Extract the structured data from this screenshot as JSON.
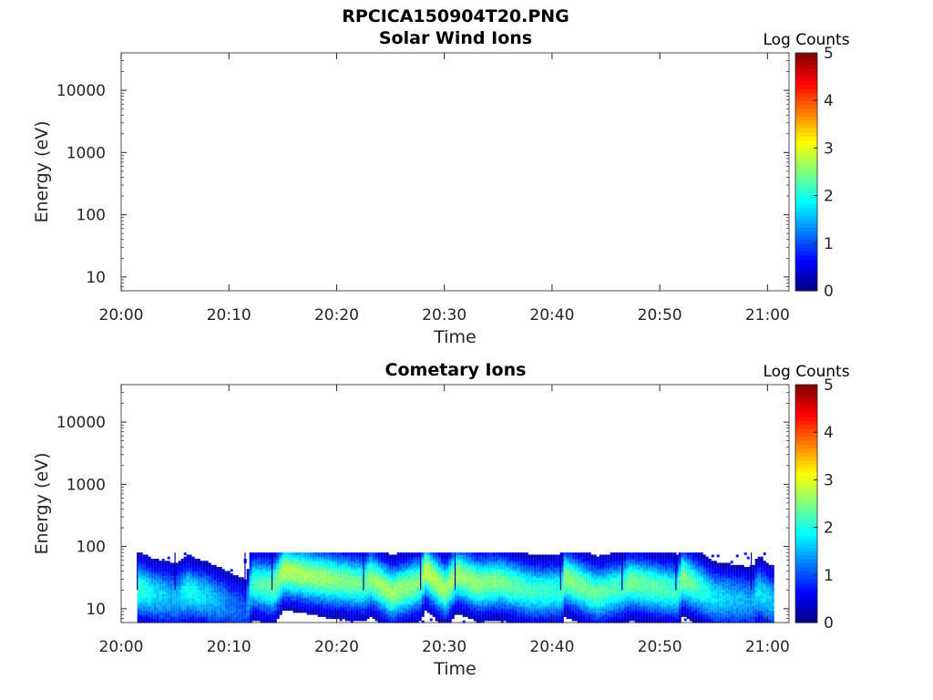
{
  "figure": {
    "file_title": "RPCICA150904T20.PNG"
  },
  "chart_data": [
    {
      "type": "heatmap",
      "title": "Solar Wind Ions",
      "xlabel": "Time",
      "ylabel": "Energy (eV)",
      "y_scale": "log",
      "ylim": [
        6,
        40000
      ],
      "xlim": [
        "20:00",
        "21:02"
      ],
      "x_ticks": [
        "20:00",
        "20:10",
        "20:20",
        "20:30",
        "20:40",
        "20:50",
        "21:00"
      ],
      "y_ticks": [
        10,
        100,
        1000,
        10000
      ],
      "y_tick_labels": [
        "10",
        "100",
        "1000",
        "10000"
      ],
      "colorbar": {
        "label": "Log Counts",
        "range": [
          0,
          5
        ],
        "ticks": [
          "0",
          "1",
          "2",
          "3",
          "4",
          "5"
        ],
        "colormap": "jet"
      },
      "data": []
    },
    {
      "type": "heatmap",
      "title": "Cometary Ions",
      "xlabel": "Time",
      "ylabel": "Energy (eV)",
      "y_scale": "log",
      "ylim": [
        6,
        40000
      ],
      "xlim": [
        "20:00",
        "21:02"
      ],
      "x_ticks": [
        "20:00",
        "20:10",
        "20:20",
        "20:30",
        "20:40",
        "20:50",
        "21:00"
      ],
      "y_ticks": [
        10,
        100,
        1000,
        10000
      ],
      "y_tick_labels": [
        "10",
        "100",
        "1000",
        "10000"
      ],
      "colorbar": {
        "label": "Log Counts",
        "range": [
          0,
          5
        ],
        "ticks": [
          "0",
          "1",
          "2",
          "3",
          "4",
          "5"
        ],
        "colormap": "jet"
      },
      "data_start": "20:01.5",
      "data_end": "21:00.5",
      "energy_range_eV": [
        6,
        80
      ],
      "scan_starts": [
        "20:01.5",
        "20:05",
        "20:11.5",
        "20:14",
        "20:22.5",
        "20:27.8",
        "20:31",
        "20:40.8",
        "20:46.5",
        "20:51.5",
        "20:58.5"
      ],
      "band_center_profile": [
        {
          "time": "20:01.5",
          "energy": 24,
          "peak": 2.0
        },
        {
          "time": "20:03",
          "energy": 20,
          "peak": 1.6
        },
        {
          "time": "20:05",
          "energy": 18,
          "peak": 1.3
        },
        {
          "time": "20:06",
          "energy": 22,
          "peak": 1.8
        },
        {
          "time": "20:08",
          "energy": 18,
          "peak": 1.5
        },
        {
          "time": "20:10",
          "energy": 14,
          "peak": 1.0
        },
        {
          "time": "20:11.5",
          "energy": 12,
          "peak": 0.8
        },
        {
          "time": "20:12",
          "energy": 30,
          "peak": 2.0
        },
        {
          "time": "20:14",
          "energy": 25,
          "peak": 2.2
        },
        {
          "time": "20:15",
          "energy": 45,
          "peak": 2.6
        },
        {
          "time": "20:18",
          "energy": 36,
          "peak": 2.5
        },
        {
          "time": "20:21",
          "energy": 30,
          "peak": 2.3
        },
        {
          "time": "20:22.5",
          "energy": 28,
          "peak": 2.2
        },
        {
          "time": "20:23",
          "energy": 35,
          "peak": 2.4
        },
        {
          "time": "20:25",
          "energy": 20,
          "peak": 2.5
        },
        {
          "time": "20:27.8",
          "energy": 30,
          "peak": 2.3
        },
        {
          "time": "20:28",
          "energy": 48,
          "peak": 2.7
        },
        {
          "time": "20:30",
          "energy": 22,
          "peak": 2.5
        },
        {
          "time": "20:31",
          "energy": 40,
          "peak": 2.5
        },
        {
          "time": "20:33",
          "energy": 28,
          "peak": 2.4
        },
        {
          "time": "20:35",
          "energy": 30,
          "peak": 2.3
        },
        {
          "time": "20:38",
          "energy": 22,
          "peak": 2.0
        },
        {
          "time": "20:40.8",
          "energy": 22,
          "peak": 1.9
        },
        {
          "time": "20:41",
          "energy": 35,
          "peak": 2.4
        },
        {
          "time": "20:44",
          "energy": 20,
          "peak": 2.2
        },
        {
          "time": "20:46.5",
          "energy": 25,
          "peak": 2.0
        },
        {
          "time": "20:47",
          "energy": 30,
          "peak": 2.3
        },
        {
          "time": "20:50",
          "energy": 24,
          "peak": 2.1
        },
        {
          "time": "20:51.5",
          "energy": 22,
          "peak": 2.0
        },
        {
          "time": "20:52",
          "energy": 35,
          "peak": 2.4
        },
        {
          "time": "20:55",
          "energy": 18,
          "peak": 1.6
        },
        {
          "time": "20:58.5",
          "energy": 16,
          "peak": 1.2
        },
        {
          "time": "20:59",
          "energy": 22,
          "peak": 1.6
        },
        {
          "time": "21:00.5",
          "energy": 15,
          "peak": 1.4
        }
      ]
    }
  ]
}
